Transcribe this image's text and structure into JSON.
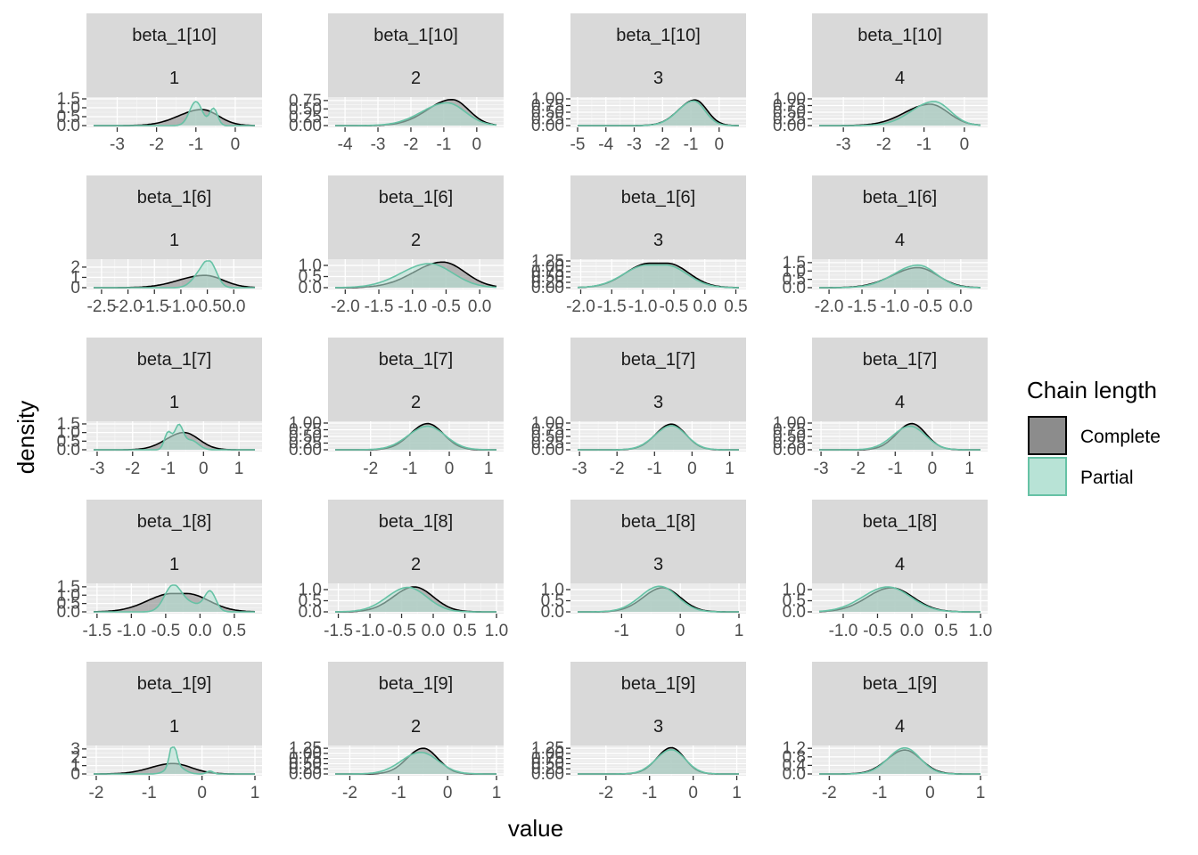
{
  "chart_data": {
    "type": "area",
    "kind": "faceted density plot",
    "xlabel": "value",
    "ylabel": "density",
    "grid": true,
    "legend": {
      "title": "Chain length",
      "position": "right",
      "entries": [
        {
          "name": "Complete",
          "fill": "#8c8c8c",
          "stroke": "#000000"
        },
        {
          "name": "Partial",
          "fill": "#b8e3d6",
          "stroke": "#66c2a5"
        }
      ]
    },
    "facet_rows": [
      "beta_1[10]",
      "beta_1[6]",
      "beta_1[7]",
      "beta_1[8]",
      "beta_1[9]"
    ],
    "facet_cols": [
      "1",
      "2",
      "3",
      "4"
    ],
    "panels": [
      {
        "param": "beta_1[10]",
        "chain": "1",
        "xlim": [
          -3.6,
          0.5
        ],
        "xticks": [
          "-3",
          "-2",
          "-1",
          "0"
        ],
        "xtick_values": [
          -3,
          -2,
          -1,
          0
        ],
        "ylim": [
          0,
          1.5
        ],
        "yticks": [
          "0.0",
          "0.5",
          "1.0",
          "1.5"
        ],
        "ytick_values": [
          0,
          0.5,
          1.0,
          1.5
        ],
        "complete": {
          "mode": -0.85,
          "sd": 0.42,
          "peak": 0.9,
          "skew": 0.4,
          "bumps": []
        },
        "partial": {
          "mode": -1.0,
          "sd": 0.16,
          "peak": 1.35,
          "skew": 0,
          "bumps": [
            {
              "at": -0.55,
              "h": 0.95,
              "sd": 0.1
            }
          ]
        }
      },
      {
        "param": "beta_1[10]",
        "chain": "2",
        "xlim": [
          -4.3,
          0.6
        ],
        "xticks": [
          "-4",
          "-3",
          "-2",
          "-1",
          "0"
        ],
        "xtick_values": [
          -4,
          -3,
          -2,
          -1,
          0
        ],
        "ylim": [
          0,
          0.8
        ],
        "yticks": [
          "0.00",
          "0.25",
          "0.50",
          "0.75"
        ],
        "ytick_values": [
          0,
          0.25,
          0.5,
          0.75
        ],
        "complete": {
          "mode": -0.75,
          "sd": 0.5,
          "peak": 0.78,
          "skew": 0.5,
          "bumps": []
        },
        "partial": {
          "mode": -0.9,
          "sd": 0.55,
          "peak": 0.68,
          "skew": 0.4,
          "bumps": []
        }
      },
      {
        "param": "beta_1[10]",
        "chain": "3",
        "xlim": [
          -5,
          0.7
        ],
        "xticks": [
          "-5",
          "-4",
          "-3",
          "-2",
          "-1",
          "0"
        ],
        "xtick_values": [
          -5,
          -4,
          -3,
          -2,
          -1,
          0
        ],
        "ylim": [
          0,
          1.0
        ],
        "yticks": [
          "0.00",
          "0.25",
          "0.50",
          "0.75",
          "1.00"
        ],
        "ytick_values": [
          0,
          0.25,
          0.5,
          0.75,
          1.0
        ],
        "complete": {
          "mode": -0.85,
          "sd": 0.42,
          "peak": 0.96,
          "skew": 0.4,
          "bumps": []
        },
        "partial": {
          "mode": -0.9,
          "sd": 0.4,
          "peak": 0.92,
          "skew": 0.4,
          "bumps": []
        }
      },
      {
        "param": "beta_1[10]",
        "chain": "4",
        "xlim": [
          -3.6,
          0.4
        ],
        "xticks": [
          "-3",
          "-2",
          "-1",
          "0"
        ],
        "xtick_values": [
          -3,
          -2,
          -1,
          0
        ],
        "ylim": [
          0,
          1.0
        ],
        "yticks": [
          "0.00",
          "0.25",
          "0.50",
          "0.75",
          "1.00"
        ],
        "ytick_values": [
          0,
          0.25,
          0.5,
          0.75,
          1.0
        ],
        "complete": {
          "mode": -0.85,
          "sd": 0.45,
          "peak": 0.8,
          "skew": 0.4,
          "bumps": []
        },
        "partial": {
          "mode": -0.75,
          "sd": 0.4,
          "peak": 0.9,
          "skew": 0.4,
          "bumps": []
        }
      },
      {
        "param": "beta_1[6]",
        "chain": "1",
        "xlim": [
          -2.65,
          0.4
        ],
        "xticks": [
          "-2.5",
          "-2.0",
          "-1.5",
          "-1.0",
          "-0.5",
          "0.0"
        ],
        "xtick_values": [
          -2.5,
          -2.0,
          -1.5,
          -1.0,
          -0.5,
          0.0
        ],
        "ylim": [
          0,
          2.6
        ],
        "yticks": [
          "0",
          "1",
          "2"
        ],
        "ytick_values": [
          0,
          1,
          2
        ],
        "complete": {
          "mode": -0.55,
          "sd": 0.35,
          "peak": 1.2,
          "skew": 0.4,
          "bumps": []
        },
        "partial": {
          "mode": -0.45,
          "sd": 0.13,
          "peak": 2.2,
          "skew": 0,
          "bumps": [
            {
              "at": -0.65,
              "h": 1.1,
              "sd": 0.15
            }
          ]
        }
      },
      {
        "param": "beta_1[6]",
        "chain": "2",
        "xlim": [
          -2.15,
          0.25
        ],
        "xticks": [
          "-2.0",
          "-1.5",
          "-1.0",
          "-0.5",
          "0.0"
        ],
        "xtick_values": [
          -2.0,
          -1.5,
          -1.0,
          -0.5,
          0.0
        ],
        "ylim": [
          0,
          1.2
        ],
        "yticks": [
          "0.0",
          "0.5",
          "1.0"
        ],
        "ytick_values": [
          0,
          0.5,
          1.0
        ],
        "complete": {
          "mode": -0.55,
          "sd": 0.33,
          "peak": 1.15,
          "skew": 0.3,
          "bumps": []
        },
        "partial": {
          "mode": -0.75,
          "sd": 0.35,
          "peak": 1.08,
          "skew": 0.2,
          "bumps": []
        }
      },
      {
        "param": "beta_1[6]",
        "chain": "3",
        "xlim": [
          -2.05,
          0.55
        ],
        "xticks": [
          "-2.0",
          "-1.5",
          "-1.0",
          "-0.5",
          "0.0",
          "0.5"
        ],
        "xtick_values": [
          -2.0,
          -1.5,
          -1.0,
          -0.5,
          0.0,
          0.5
        ],
        "ylim": [
          0,
          1.25
        ],
        "yticks": [
          "0.00",
          "0.25",
          "0.50",
          "0.75",
          "1.00",
          "1.25"
        ],
        "ytick_values": [
          0,
          0.25,
          0.5,
          0.75,
          1.0,
          1.25
        ],
        "complete": {
          "mode": -0.75,
          "sd": 0.34,
          "peak": 1.14,
          "skew": 0.1,
          "plateau": 0.3,
          "bumps": []
        },
        "partial": {
          "mode": -0.78,
          "sd": 0.34,
          "peak": 1.06,
          "skew": 0.1,
          "plateau": 0.3,
          "bumps": []
        }
      },
      {
        "param": "beta_1[6]",
        "chain": "4",
        "xlim": [
          -2.15,
          0.3
        ],
        "xticks": [
          "-2.0",
          "-1.5",
          "-1.0",
          "-0.5",
          "0.0"
        ],
        "xtick_values": [
          -2.0,
          -1.5,
          -1.0,
          -0.5,
          0.0
        ],
        "ylim": [
          0,
          1.6
        ],
        "yticks": [
          "0.0",
          "0.5",
          "1.0",
          "1.5"
        ],
        "ytick_values": [
          0,
          0.5,
          1.0,
          1.5
        ],
        "complete": {
          "mode": -0.65,
          "sd": 0.3,
          "peak": 1.2,
          "skew": 0.3,
          "bumps": []
        },
        "partial": {
          "mode": -0.65,
          "sd": 0.28,
          "peak": 1.35,
          "skew": 0.3,
          "bumps": []
        }
      },
      {
        "param": "beta_1[7]",
        "chain": "1",
        "xlim": [
          -3.1,
          1.45
        ],
        "xticks": [
          "-3",
          "-2",
          "-1",
          "0",
          "1"
        ],
        "xtick_values": [
          -3,
          -2,
          -1,
          0,
          1
        ],
        "ylim": [
          0,
          1.55
        ],
        "yticks": [
          "0.0",
          "0.5",
          "1.0",
          "1.5"
        ],
        "ytick_values": [
          0,
          0.5,
          1.0,
          1.5
        ],
        "complete": {
          "mode": -0.55,
          "sd": 0.42,
          "peak": 1.0,
          "skew": 0.2,
          "bumps": []
        },
        "partial": {
          "mode": -0.7,
          "sd": 0.12,
          "peak": 1.35,
          "skew": 0,
          "bumps": [
            {
              "at": -1.0,
              "h": 1.0,
              "sd": 0.1
            },
            {
              "at": -0.35,
              "h": 0.55,
              "sd": 0.2
            }
          ]
        }
      },
      {
        "param": "beta_1[7]",
        "chain": "2",
        "xlim": [
          -2.9,
          1.2
        ],
        "xticks": [
          "-2",
          "-1",
          "0",
          "1"
        ],
        "xtick_values": [
          -2,
          -1,
          0,
          1
        ],
        "ylim": [
          0,
          1.0
        ],
        "yticks": [
          "0.00",
          "0.25",
          "0.50",
          "0.75",
          "1.00"
        ],
        "ytick_values": [
          0,
          0.25,
          0.5,
          0.75,
          1.0
        ],
        "complete": {
          "mode": -0.55,
          "sd": 0.4,
          "peak": 0.98,
          "skew": 0.1,
          "bumps": []
        },
        "partial": {
          "mode": -0.55,
          "sd": 0.45,
          "peak": 0.88,
          "skew": 0.1,
          "bumps": []
        }
      },
      {
        "param": "beta_1[7]",
        "chain": "3",
        "xlim": [
          -3.05,
          1.25
        ],
        "xticks": [
          "-3",
          "-2",
          "-1",
          "0",
          "1"
        ],
        "xtick_values": [
          -3,
          -2,
          -1,
          0,
          1
        ],
        "ylim": [
          0,
          1.0
        ],
        "yticks": [
          "0.00",
          "0.25",
          "0.50",
          "0.75",
          "1.00"
        ],
        "ytick_values": [
          0,
          0.25,
          0.5,
          0.75,
          1.0
        ],
        "complete": {
          "mode": -0.55,
          "sd": 0.38,
          "peak": 0.96,
          "skew": 0.1,
          "bumps": []
        },
        "partial": {
          "mode": -0.55,
          "sd": 0.4,
          "peak": 0.9,
          "skew": 0.1,
          "bumps": []
        }
      },
      {
        "param": "beta_1[7]",
        "chain": "4",
        "xlim": [
          -3.05,
          1.3
        ],
        "xticks": [
          "-3",
          "-2",
          "-1",
          "0",
          "1"
        ],
        "xtick_values": [
          -3,
          -2,
          -1,
          0,
          1
        ],
        "ylim": [
          0,
          1.0
        ],
        "yticks": [
          "0.00",
          "0.25",
          "0.50",
          "0.75",
          "1.00"
        ],
        "ytick_values": [
          0,
          0.25,
          0.5,
          0.75,
          1.0
        ],
        "complete": {
          "mode": -0.55,
          "sd": 0.38,
          "peak": 0.98,
          "skew": 0.1,
          "bumps": []
        },
        "partial": {
          "mode": -0.6,
          "sd": 0.42,
          "peak": 0.88,
          "skew": 0.1,
          "bumps": []
        }
      },
      {
        "param": "beta_1[8]",
        "chain": "1",
        "xlim": [
          -1.55,
          0.8
        ],
        "xticks": [
          "-1.5",
          "-1.0",
          "-0.5",
          "0.0",
          "0.5"
        ],
        "xtick_values": [
          -1.5,
          -1.0,
          -0.5,
          0.0,
          0.5
        ],
        "ylim": [
          0,
          1.6
        ],
        "yticks": [
          "0.0",
          "0.5",
          "1.0",
          "1.5"
        ],
        "ytick_values": [
          0,
          0.5,
          1.0,
          1.5
        ],
        "complete": {
          "mode": -0.3,
          "sd": 0.33,
          "peak": 1.1,
          "skew": 0.1,
          "plateau": 0.2,
          "bumps": []
        },
        "partial": {
          "mode": -0.4,
          "sd": 0.12,
          "peak": 1.4,
          "skew": 0,
          "bumps": [
            {
              "at": 0.15,
              "h": 1.1,
              "sd": 0.08
            },
            {
              "at": -0.15,
              "h": 0.5,
              "sd": 0.2
            }
          ]
        }
      },
      {
        "param": "beta_1[8]",
        "chain": "2",
        "xlim": [
          -1.55,
          1.0
        ],
        "xticks": [
          "-1.5",
          "-1.0",
          "-0.5",
          "0.0",
          "0.5",
          "1.0"
        ],
        "xtick_values": [
          -1.5,
          -1.0,
          -0.5,
          0.0,
          0.5,
          1.0
        ],
        "ylim": [
          0,
          1.2
        ],
        "yticks": [
          "0.0",
          "0.5",
          "1.0"
        ],
        "ytick_values": [
          0,
          0.5,
          1.0
        ],
        "complete": {
          "mode": -0.3,
          "sd": 0.3,
          "peak": 1.12,
          "skew": 0.1,
          "bumps": []
        },
        "partial": {
          "mode": -0.4,
          "sd": 0.3,
          "peak": 1.1,
          "skew": 0.1,
          "bumps": []
        }
      },
      {
        "param": "beta_1[8]",
        "chain": "3",
        "xlim": [
          -1.75,
          1.0
        ],
        "xticks": [
          "-1",
          "0",
          "1"
        ],
        "xtick_values": [
          -1,
          0,
          1
        ],
        "ylim": [
          0,
          1.2
        ],
        "yticks": [
          "0.0",
          "0.5",
          "1.0"
        ],
        "ytick_values": [
          0,
          0.5,
          1.0
        ],
        "complete": {
          "mode": -0.3,
          "sd": 0.3,
          "peak": 1.08,
          "skew": 0.1,
          "bumps": []
        },
        "partial": {
          "mode": -0.35,
          "sd": 0.3,
          "peak": 1.15,
          "skew": 0.1,
          "bumps": []
        }
      },
      {
        "param": "beta_1[8]",
        "chain": "4",
        "xlim": [
          -1.35,
          1.0
        ],
        "xticks": [
          "-1.0",
          "-0.5",
          "0.0",
          "0.5",
          "1.0"
        ],
        "xtick_values": [
          -1.0,
          -0.5,
          0.0,
          0.5,
          1.0
        ],
        "ylim": [
          0,
          1.2
        ],
        "yticks": [
          "0.0",
          "0.5",
          "1.0"
        ],
        "ytick_values": [
          0,
          0.5,
          1.0
        ],
        "complete": {
          "mode": -0.3,
          "sd": 0.32,
          "peak": 1.08,
          "skew": 0.1,
          "bumps": []
        },
        "partial": {
          "mode": -0.35,
          "sd": 0.33,
          "peak": 1.12,
          "skew": 0.1,
          "bumps": []
        }
      },
      {
        "param": "beta_1[9]",
        "chain": "1",
        "xlim": [
          -2.05,
          1.0
        ],
        "xticks": [
          "-2",
          "-1",
          "0",
          "1"
        ],
        "xtick_values": [
          -2,
          -1,
          0,
          1
        ],
        "ylim": [
          0,
          3.2
        ],
        "yticks": [
          "0",
          "1",
          "2",
          "3"
        ],
        "ytick_values": [
          0,
          1,
          2,
          3
        ],
        "complete": {
          "mode": -0.55,
          "sd": 0.35,
          "peak": 1.25,
          "skew": 0.2,
          "bumps": []
        },
        "partial": {
          "mode": -0.55,
          "sd": 0.06,
          "peak": 2.9,
          "skew": 0,
          "bumps": [
            {
              "at": -0.5,
              "h": 1.0,
              "sd": 0.15
            },
            {
              "at": 0.15,
              "h": 0.35,
              "sd": 0.06
            }
          ]
        }
      },
      {
        "param": "beta_1[9]",
        "chain": "2",
        "xlim": [
          -2.3,
          1.0
        ],
        "xticks": [
          "-2",
          "-1",
          "0",
          "1"
        ],
        "xtick_values": [
          -2,
          -1,
          0,
          1
        ],
        "ylim": [
          0,
          1.3
        ],
        "yticks": [
          "0.00",
          "0.25",
          "0.50",
          "0.75",
          "1.00",
          "1.25"
        ],
        "ytick_values": [
          0,
          0.25,
          0.5,
          0.75,
          1.0,
          1.25
        ],
        "complete": {
          "mode": -0.5,
          "sd": 0.3,
          "peak": 1.25,
          "skew": 0.1,
          "bumps": []
        },
        "partial": {
          "mode": -0.55,
          "sd": 0.36,
          "peak": 1.05,
          "skew": 0.1,
          "bumps": []
        }
      },
      {
        "param": "beta_1[9]",
        "chain": "3",
        "xlim": [
          -2.65,
          1.05
        ],
        "xticks": [
          "-2",
          "-1",
          "0",
          "1"
        ],
        "xtick_values": [
          -2,
          -1,
          0,
          1
        ],
        "ylim": [
          0,
          1.3
        ],
        "yticks": [
          "0.00",
          "0.25",
          "0.50",
          "0.75",
          "1.00",
          "1.25"
        ],
        "ytick_values": [
          0,
          0.25,
          0.5,
          0.75,
          1.0,
          1.25
        ],
        "complete": {
          "mode": -0.5,
          "sd": 0.3,
          "peak": 1.28,
          "skew": 0.1,
          "bumps": []
        },
        "partial": {
          "mode": -0.5,
          "sd": 0.32,
          "peak": 1.18,
          "skew": 0.1,
          "bumps": []
        }
      },
      {
        "param": "beta_1[9]",
        "chain": "4",
        "xlim": [
          -2.2,
          1.0
        ],
        "xticks": [
          "-2",
          "-1",
          "0",
          "1"
        ],
        "xtick_values": [
          -2,
          -1,
          0,
          1
        ],
        "ylim": [
          0,
          1.25
        ],
        "yticks": [
          "0.0",
          "0.4",
          "0.8",
          "1.2"
        ],
        "ytick_values": [
          0,
          0.4,
          0.8,
          1.2
        ],
        "complete": {
          "mode": -0.5,
          "sd": 0.32,
          "peak": 1.12,
          "skew": 0.1,
          "bumps": []
        },
        "partial": {
          "mode": -0.5,
          "sd": 0.3,
          "peak": 1.22,
          "skew": 0.1,
          "bumps": []
        }
      }
    ]
  }
}
